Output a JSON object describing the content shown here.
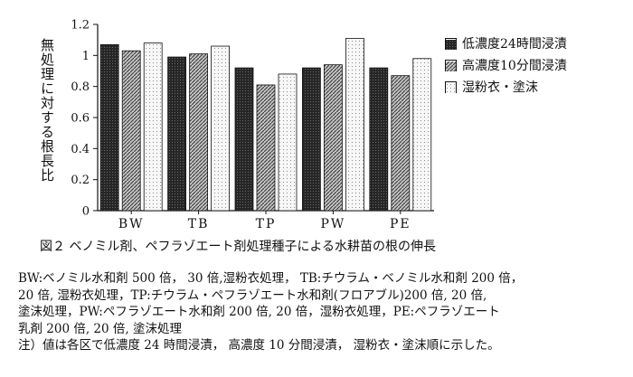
{
  "chart_data": {
    "type": "bar",
    "categories": [
      "BW",
      "TB",
      "TP",
      "PW",
      "PE"
    ],
    "series": [
      {
        "name": "低濃度24時間浸漬",
        "values": [
          1.07,
          0.99,
          0.92,
          0.92,
          0.92
        ],
        "color": "#2b2b2b"
      },
      {
        "name": "高濃度10分間浸漬",
        "values": [
          1.03,
          1.01,
          0.81,
          0.94,
          0.87
        ],
        "color": "#9a9a9a"
      },
      {
        "name": "湿粉衣・塗沫",
        "values": [
          1.08,
          1.06,
          0.88,
          1.11,
          0.98
        ],
        "color": "#eeeeee"
      }
    ],
    "ylabel": "無処理に対する根長比",
    "ylim": [
      0,
      1.2
    ],
    "yticks": [
      0,
      0.2,
      0.4,
      0.6,
      0.8,
      1,
      1.2
    ],
    "ytick_labels": [
      "0",
      "0.2",
      "0.4",
      "0.6",
      "0.8",
      "1",
      "1.2"
    ],
    "grid": false,
    "legend_position": "right"
  },
  "caption": "図２ ベノミル剤、ペフラゾエート剤処理種子による水耕苗の根の伸長",
  "notes": [
    "BW:ベノミル水和剤 500 倍， 30 倍,湿粉衣処理， TB:チウラム・ベノミル水和剤 200 倍，",
    "20 倍, 湿粉衣処理，TP:チウラム・ペフラゾエート水和剤(フロアブル)200 倍, 20 倍,",
    "塗沫処理，PW:ペフラゾエート水和剤 200 倍, 20 倍，湿粉衣処理，PE:ペフラゾエート",
    "乳剤 200 倍, 20 倍, 塗沫処理",
    "注）値は各区で低濃度 24 時間浸漬， 高濃度 10 分間浸漬， 湿粉衣・塗沫順に示した。"
  ]
}
